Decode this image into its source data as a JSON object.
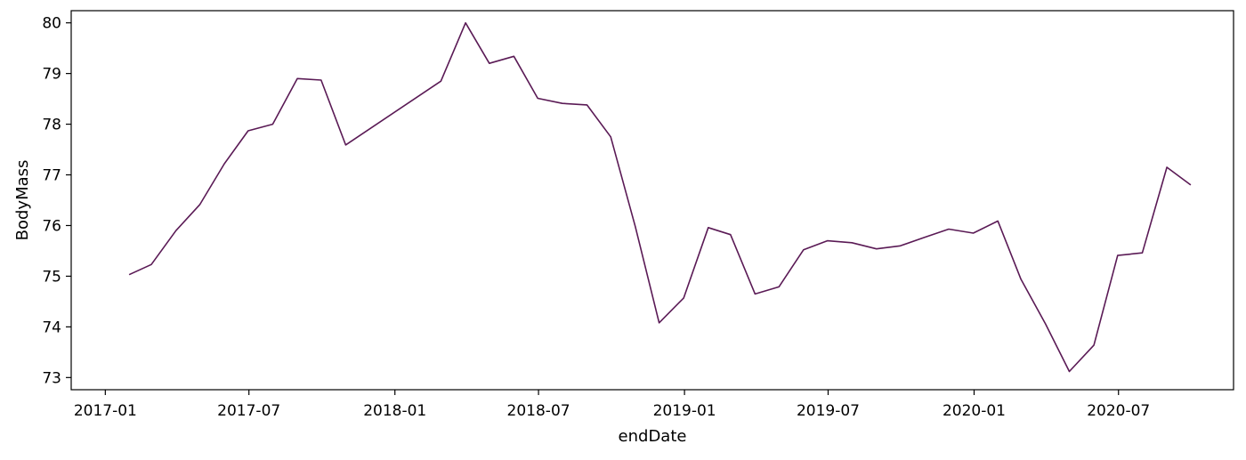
{
  "chart_data": {
    "type": "line",
    "xlabel": "endDate",
    "ylabel": "BodyMass",
    "x_ticks": [
      "2017-01",
      "2017-07",
      "2018-01",
      "2018-07",
      "2019-01",
      "2019-07",
      "2020-01",
      "2020-07"
    ],
    "y_ticks": [
      73,
      74,
      75,
      76,
      77,
      78,
      79,
      80
    ],
    "xlim": [
      "2016-11-19",
      "2020-11-23"
    ],
    "ylim": [
      72.76,
      80.24
    ],
    "grid": false,
    "line_color": "#5a1a55",
    "series": [
      {
        "x": [
          "2017-01-31",
          "2017-02-28",
          "2017-03-31",
          "2017-04-30",
          "2017-05-31",
          "2017-06-30",
          "2017-07-31",
          "2017-08-31",
          "2017-09-30",
          "2017-10-31",
          "2018-02-28",
          "2018-03-31",
          "2018-04-30",
          "2018-05-31",
          "2018-06-30",
          "2018-07-31",
          "2018-08-31",
          "2018-09-30",
          "2018-10-31",
          "2018-11-30",
          "2018-12-31",
          "2019-01-31",
          "2019-02-28",
          "2019-03-31",
          "2019-04-30",
          "2019-05-31",
          "2019-06-30",
          "2019-07-31",
          "2019-08-31",
          "2019-09-30",
          "2019-10-31",
          "2019-11-30",
          "2019-12-31",
          "2020-01-31",
          "2020-02-29",
          "2020-03-31",
          "2020-04-30",
          "2020-05-31",
          "2020-06-30",
          "2020-07-31",
          "2020-08-31",
          "2020-09-30"
        ],
        "values": [
          75.03,
          75.23,
          75.9,
          76.41,
          77.22,
          77.87,
          78.0,
          78.9,
          78.87,
          77.59,
          78.85,
          80.0,
          79.2,
          79.34,
          78.51,
          78.41,
          78.38,
          77.75,
          75.98,
          74.08,
          74.57,
          75.96,
          75.82,
          74.65,
          74.79,
          75.52,
          75.7,
          75.66,
          75.54,
          75.6,
          75.77,
          75.93,
          75.85,
          76.09,
          74.94,
          74.06,
          73.12,
          73.64,
          75.41,
          75.46,
          77.15,
          76.8
        ]
      }
    ]
  }
}
